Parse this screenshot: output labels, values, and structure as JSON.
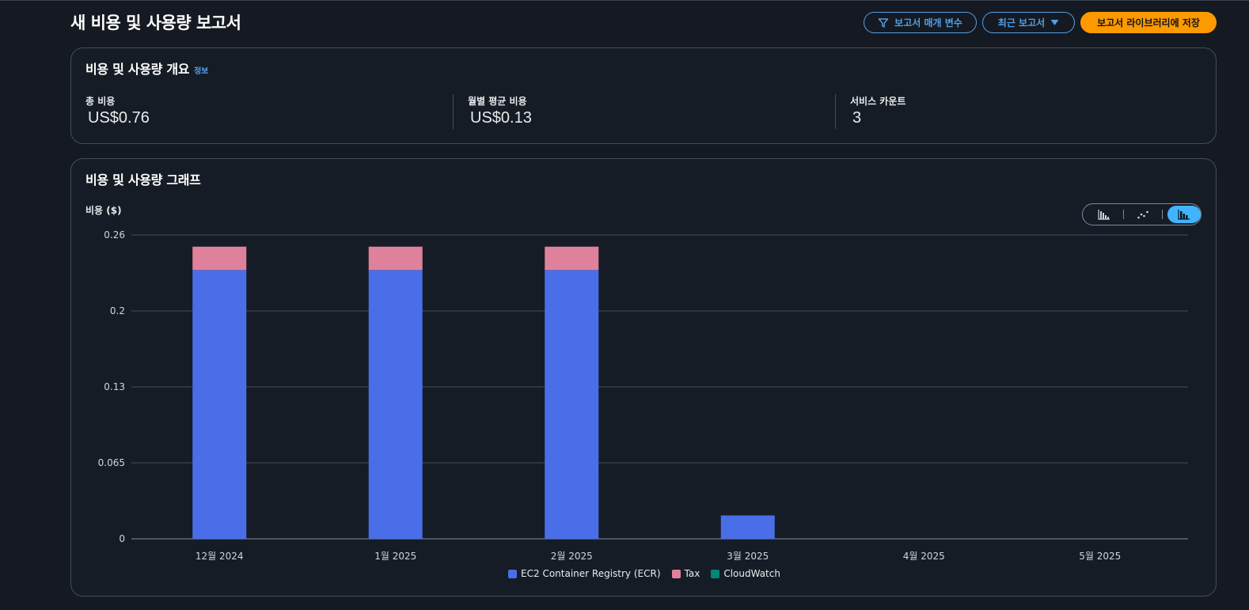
{
  "page": {
    "title": "새 비용 및 사용량 보고서"
  },
  "header": {
    "params_button": "보고서 매개 변수",
    "recent_button": "최근 보고서",
    "save_button": "보고서 라이브러리에 저장",
    "icons": {
      "params": "filter-icon",
      "recent": "caret-down-icon"
    }
  },
  "overview": {
    "title": "비용 및 사용량 개요",
    "info": "정보",
    "metrics": [
      {
        "label": "총 비용",
        "value": "US$0.76"
      },
      {
        "label": "월별 평균 비용",
        "value": "US$0.13"
      },
      {
        "label": "서비스 카운트",
        "value": "3"
      }
    ]
  },
  "graph": {
    "title": "비용 및 사용량 그래프",
    "view_modes": [
      "bar-chart-icon",
      "line-chart-icon",
      "stacked-bar-chart-icon"
    ],
    "active_view": "stacked-bar-chart-icon"
  },
  "colors": {
    "accent": "#539fe5",
    "primary": "#ff9900",
    "ecr": "#4a6ee8",
    "tax": "#e0819c",
    "cloudwatch": "#008577"
  },
  "chart_data": {
    "type": "bar",
    "stacked": true,
    "ylabel": "비용 ($)",
    "ylim": [
      0,
      0.26
    ],
    "yticks": [
      "0",
      "0.065",
      "0.13",
      "0.2",
      "0.26"
    ],
    "ytick_values": [
      0,
      0.065,
      0.13,
      0.195,
      0.26
    ],
    "categories": [
      "12월 2024",
      "1월 2025",
      "2월 2025",
      "3월 2025",
      "4월 2025",
      "5월 2025"
    ],
    "series": [
      {
        "name": "EC2 Container Registry (ECR)",
        "color": "#4a6ee8",
        "values": [
          0.23,
          0.23,
          0.23,
          0.02,
          0,
          0
        ]
      },
      {
        "name": "Tax",
        "color": "#e0819c",
        "values": [
          0.02,
          0.02,
          0.02,
          0,
          0,
          0
        ]
      },
      {
        "name": "CloudWatch",
        "color": "#008577",
        "values": [
          0,
          0,
          0,
          0,
          0,
          0
        ]
      }
    ],
    "grid": true,
    "legend_position": "bottom"
  }
}
